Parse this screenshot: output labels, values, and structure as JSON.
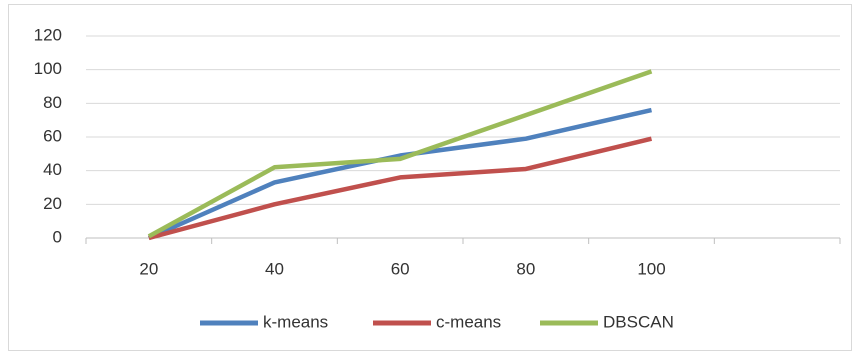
{
  "chart_data": {
    "type": "line",
    "categories": [
      "20",
      "40",
      "60",
      "80",
      "100",
      null
    ],
    "series": [
      {
        "name": "k-means",
        "color": "#4f81bd",
        "values": [
          0,
          33,
          49,
          59,
          76,
          null
        ]
      },
      {
        "name": "c-means",
        "color": "#c0504d",
        "values": [
          0,
          20,
          36,
          41,
          59,
          null
        ]
      },
      {
        "name": "DBSCAN",
        "color": "#9bbb59",
        "values": [
          1,
          42,
          47,
          73,
          99,
          null
        ]
      }
    ],
    "ylim": [
      0,
      120
    ],
    "yticks": [
      0,
      20,
      40,
      60,
      80,
      100,
      120
    ],
    "grid": true,
    "legend": "bottom"
  }
}
